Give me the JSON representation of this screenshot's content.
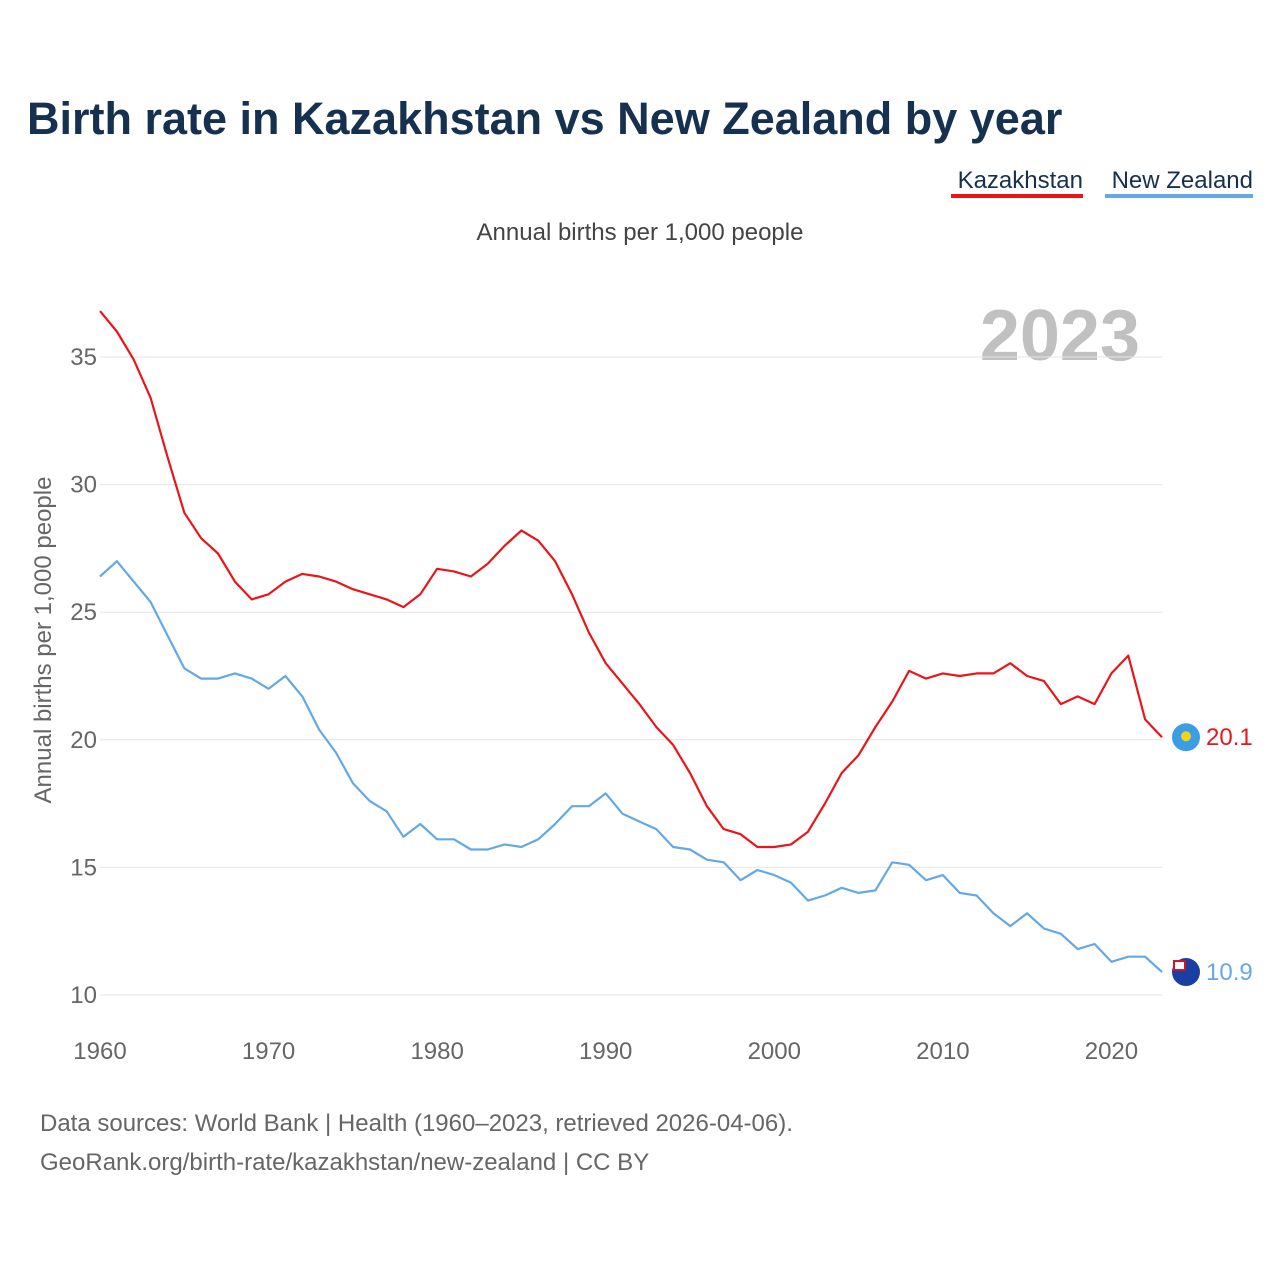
{
  "title": "Birth rate in Kazakhstan vs New Zealand by year",
  "subtitle": "Annual births per 1,000 people",
  "current_year": "2023",
  "sources": {
    "line1": "Data sources: World Bank | Health (1960–2023, retrieved 2026-04-06).",
    "line2": "GeoRank.org/birth-rate/kazakhstan/new-zealand | CC BY"
  },
  "colors": {
    "kazakhstan": "#e8161b",
    "new_zealand": "#64a8e6",
    "grid": "#e6e6e6"
  },
  "chart_data": {
    "type": "line",
    "title": "Birth rate in Kazakhstan vs New Zealand by year",
    "xlabel": "",
    "ylabel": "Annual births per 1,000 people",
    "xlim": [
      1960,
      2023
    ],
    "ylim": [
      10,
      37
    ],
    "x_ticks": [
      1960,
      1970,
      1980,
      1990,
      2000,
      2010,
      2020
    ],
    "y_ticks": [
      10,
      15,
      20,
      25,
      30,
      35
    ],
    "legend_position": "top-right",
    "x": [
      1960,
      1961,
      1962,
      1963,
      1964,
      1965,
      1966,
      1967,
      1968,
      1969,
      1970,
      1971,
      1972,
      1973,
      1974,
      1975,
      1976,
      1977,
      1978,
      1979,
      1980,
      1981,
      1982,
      1983,
      1984,
      1985,
      1986,
      1987,
      1988,
      1989,
      1990,
      1991,
      1992,
      1993,
      1994,
      1995,
      1996,
      1997,
      1998,
      1999,
      2000,
      2001,
      2002,
      2003,
      2004,
      2005,
      2006,
      2007,
      2008,
      2009,
      2010,
      2011,
      2012,
      2013,
      2014,
      2015,
      2016,
      2017,
      2018,
      2019,
      2020,
      2021,
      2022,
      2023
    ],
    "series": [
      {
        "name": "Kazakhstan",
        "end_label": "20.1",
        "values": [
          36.8,
          36.0,
          34.9,
          33.4,
          31.1,
          28.9,
          27.9,
          27.3,
          26.2,
          25.5,
          25.7,
          26.2,
          26.5,
          26.4,
          26.2,
          25.9,
          25.7,
          25.5,
          25.2,
          25.7,
          26.7,
          26.6,
          26.4,
          26.9,
          27.6,
          28.2,
          27.8,
          27.0,
          25.7,
          24.2,
          23.0,
          22.2,
          21.4,
          20.5,
          19.8,
          18.7,
          17.4,
          16.5,
          16.3,
          15.8,
          15.8,
          15.9,
          16.4,
          17.5,
          18.7,
          19.4,
          20.5,
          21.5,
          22.7,
          22.4,
          22.6,
          22.5,
          22.6,
          22.6,
          23.0,
          22.5,
          22.3,
          21.4,
          21.7,
          21.4,
          22.6,
          23.3,
          20.8,
          20.1
        ]
      },
      {
        "name": "New Zealand",
        "end_label": "10.9",
        "values": [
          26.4,
          27.0,
          26.2,
          25.4,
          24.1,
          22.8,
          22.4,
          22.4,
          22.6,
          22.4,
          22.0,
          22.5,
          21.7,
          20.4,
          19.5,
          18.3,
          17.6,
          17.2,
          16.2,
          16.7,
          16.1,
          16.1,
          15.7,
          15.7,
          15.9,
          15.8,
          16.1,
          16.7,
          17.4,
          17.4,
          17.9,
          17.1,
          16.8,
          16.5,
          15.8,
          15.7,
          15.3,
          15.2,
          14.5,
          14.9,
          14.7,
          14.4,
          13.7,
          13.9,
          14.2,
          14.0,
          14.1,
          15.2,
          15.1,
          14.5,
          14.7,
          14.0,
          13.9,
          13.2,
          12.7,
          13.2,
          12.6,
          12.4,
          11.8,
          12.0,
          11.3,
          11.5,
          11.5,
          10.9
        ]
      }
    ]
  }
}
